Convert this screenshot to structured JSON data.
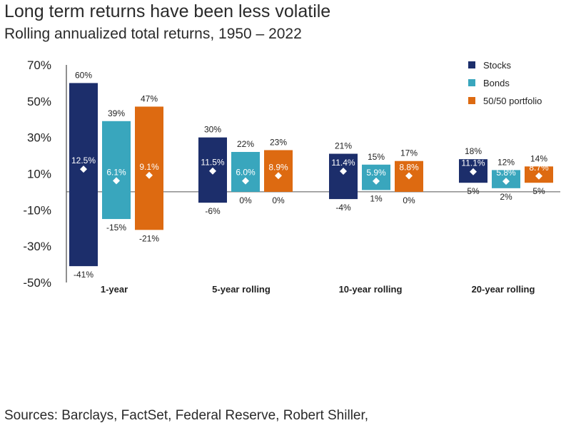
{
  "title": "Long term returns have been less volatile",
  "subtitle": "Rolling annualized total returns, 1950 – 2022",
  "source": "Sources: Barclays, FactSet, Federal Reserve, Robert Shiller,",
  "colors": {
    "stocks": "#1c2e6b",
    "bonds": "#39a6bd",
    "portfolio": "#dd6a11",
    "marker": "#ffffff",
    "axis": "#222222"
  },
  "chart_data": {
    "type": "bar",
    "subtype": "floating-range",
    "title": "Long term returns have been less volatile",
    "subtitle": "Rolling annualized total returns, 1950 – 2022",
    "ylim": [
      -50,
      70
    ],
    "yticks": [
      70,
      50,
      30,
      10,
      -10,
      -30,
      -50
    ],
    "ytick_labels": [
      "70%",
      "50%",
      "30%",
      "10%",
      "-10%",
      "-30%",
      "-50%"
    ],
    "grid": false,
    "legend_position": "top-right",
    "categories": [
      "1-year",
      "5-year rolling",
      "10-year rolling",
      "20-year rolling"
    ],
    "series": [
      {
        "name": "Stocks",
        "color_key": "stocks",
        "max": [
          60,
          30,
          21,
          18
        ],
        "min": [
          -41,
          -6,
          -4,
          5
        ],
        "avg": [
          12.5,
          11.5,
          11.4,
          11.1
        ],
        "max_labels": [
          "60%",
          "30%",
          "21%",
          "18%"
        ],
        "min_labels": [
          "-41%",
          "-6%",
          "-4%",
          "5%"
        ],
        "avg_labels": [
          "12.5%",
          "11.5%",
          "11.4%",
          "11.1%"
        ]
      },
      {
        "name": "Bonds",
        "color_key": "bonds",
        "max": [
          39,
          22,
          15,
          12
        ],
        "min": [
          -15,
          0,
          1,
          2
        ],
        "avg": [
          6.1,
          6.0,
          5.9,
          5.8
        ],
        "max_labels": [
          "39%",
          "22%",
          "15%",
          "12%"
        ],
        "min_labels": [
          "-15%",
          "0%",
          "1%",
          "2%"
        ],
        "avg_labels": [
          "6.1%",
          "6.0%",
          "5.9%",
          "5.8%"
        ]
      },
      {
        "name": "50/50 portfolio",
        "color_key": "portfolio",
        "max": [
          47,
          23,
          17,
          14
        ],
        "min": [
          -21,
          0,
          0,
          5
        ],
        "avg": [
          9.1,
          8.9,
          8.8,
          8.7
        ],
        "max_labels": [
          "47%",
          "23%",
          "17%",
          "14%"
        ],
        "min_labels": [
          "-21%",
          "0%",
          "0%",
          "5%"
        ],
        "avg_labels": [
          "9.1%",
          "8.9%",
          "8.8%",
          "8.7%"
        ]
      }
    ]
  }
}
